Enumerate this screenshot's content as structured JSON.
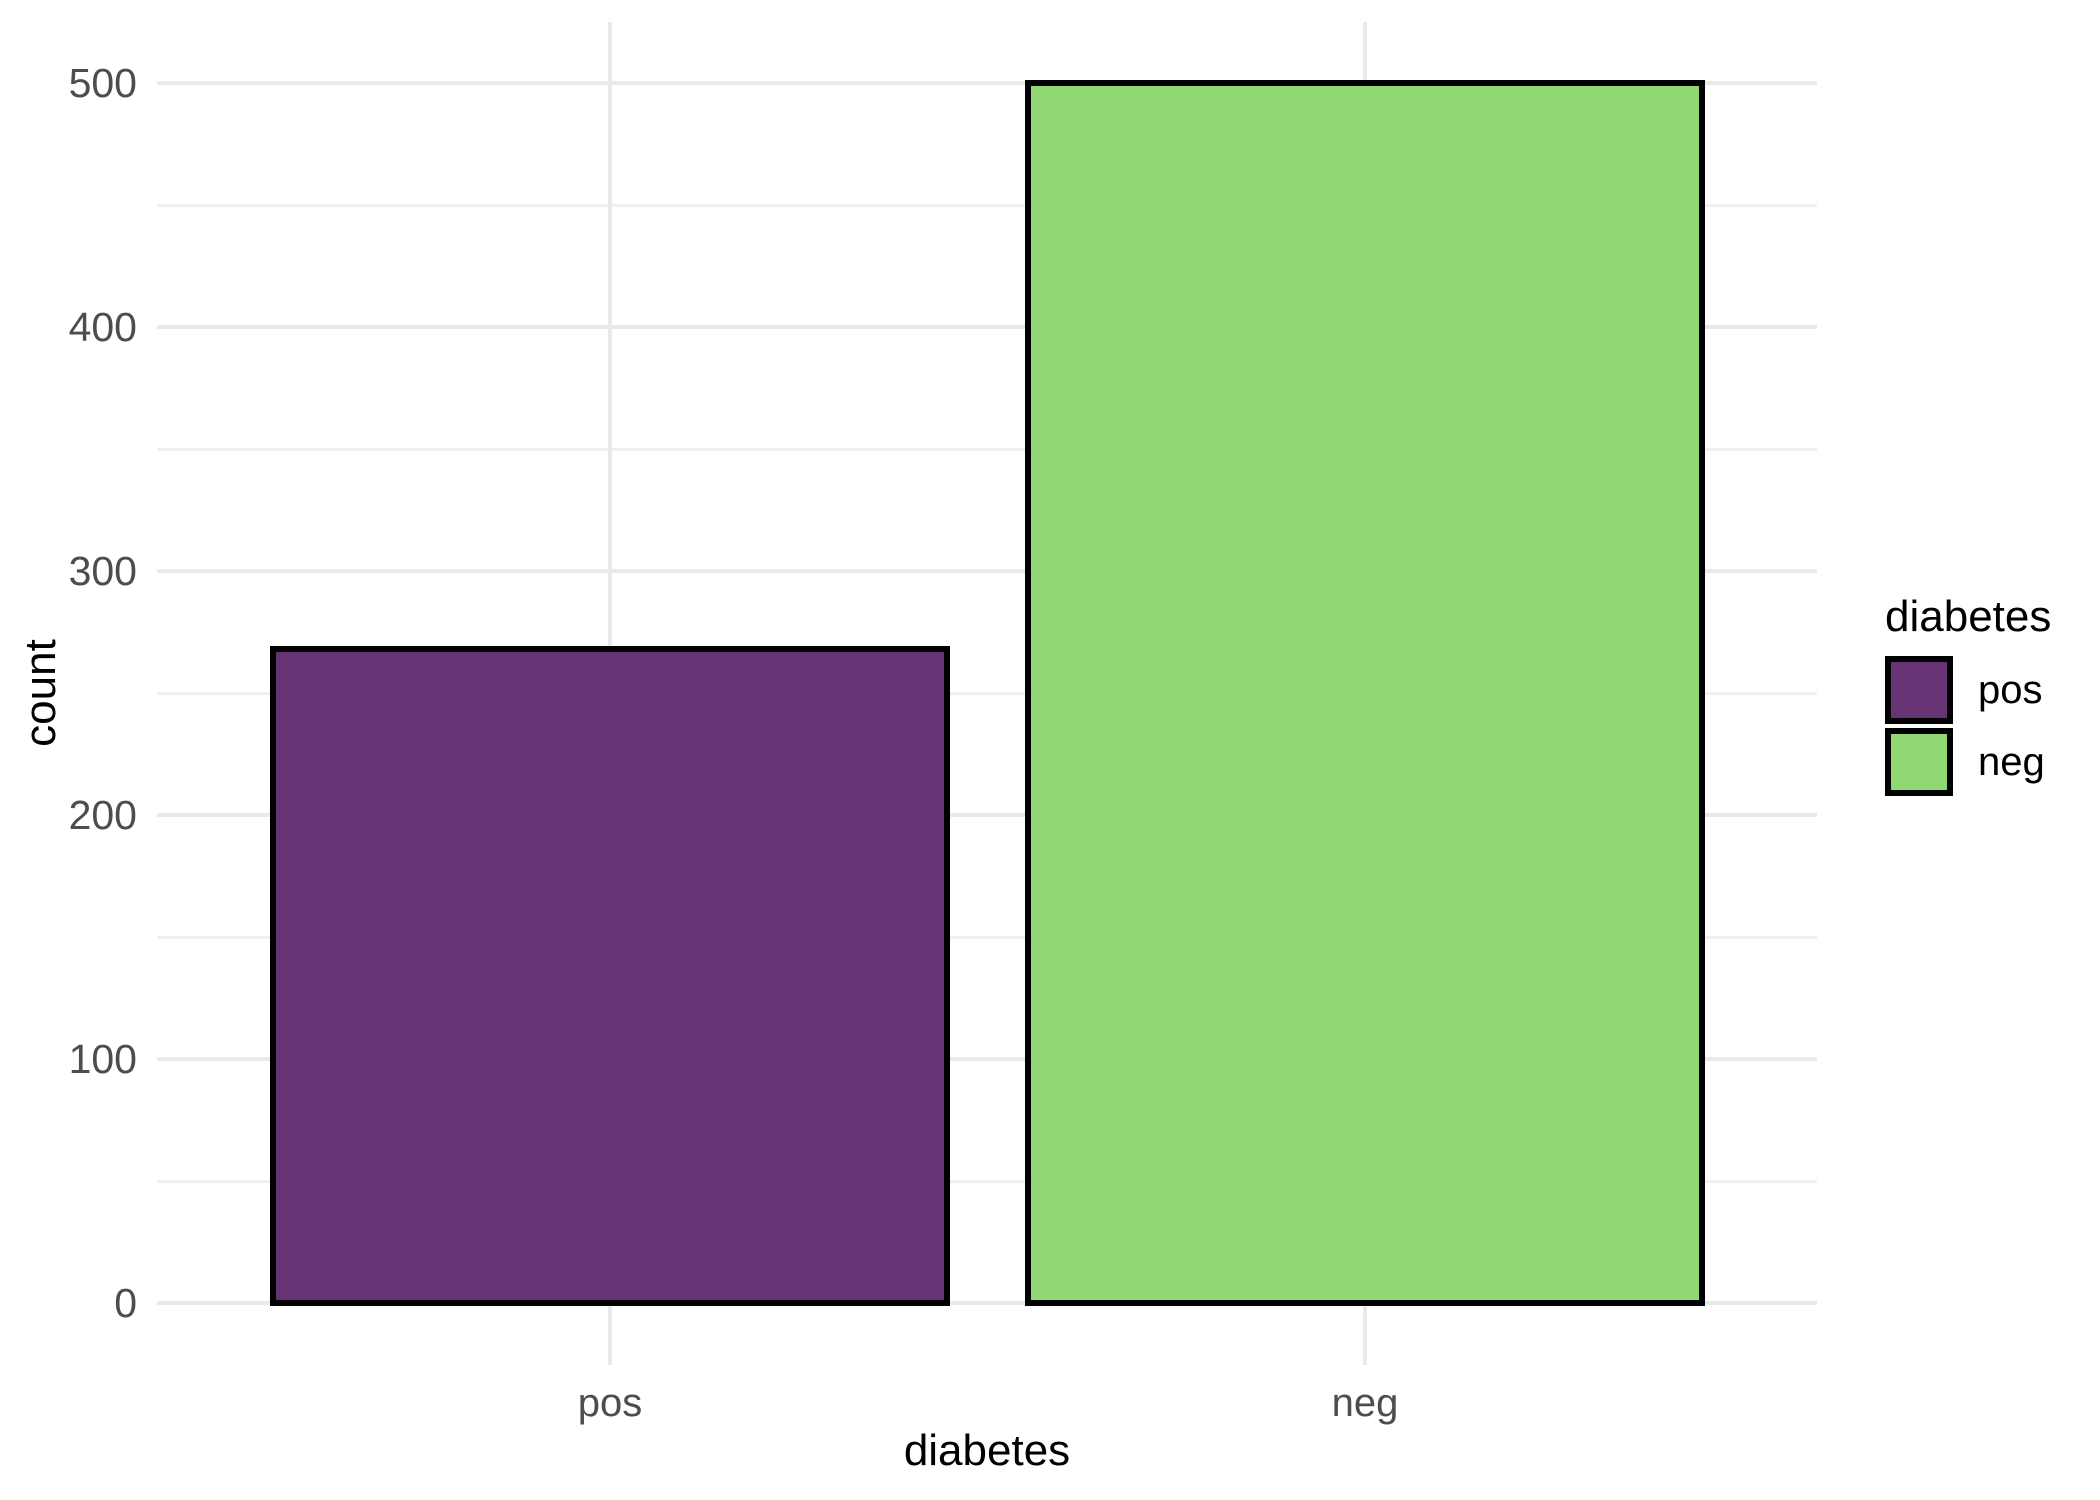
{
  "chart_data": {
    "type": "bar",
    "title": "",
    "xlabel": "diabetes",
    "ylabel": "count",
    "categories": [
      "pos",
      "neg"
    ],
    "values": [
      268,
      500
    ],
    "ylim": [
      0,
      500
    ],
    "yticks": [
      0,
      100,
      200,
      300,
      400,
      500
    ],
    "y_minor_ticks": [
      50,
      150,
      250,
      350,
      450
    ],
    "grid": "major and minor horizontal, vertical at category centers",
    "bar_outline_color": "#000000",
    "bar_fills": {
      "pos": "#683375",
      "neg": "#8FD873"
    },
    "legend": {
      "title": "diabetes",
      "position": "right",
      "entries": [
        {
          "label": "pos",
          "color": "#683375"
        },
        {
          "label": "neg",
          "color": "#8FD873"
        }
      ]
    },
    "style": {
      "background_color": "#FFFFFF",
      "major_gridline_color": "#E9E9E9",
      "minor_gridline_color": "#F0F0F0",
      "axis_text_color": "#4D4D4D",
      "axis_title_color": "#000000"
    }
  }
}
